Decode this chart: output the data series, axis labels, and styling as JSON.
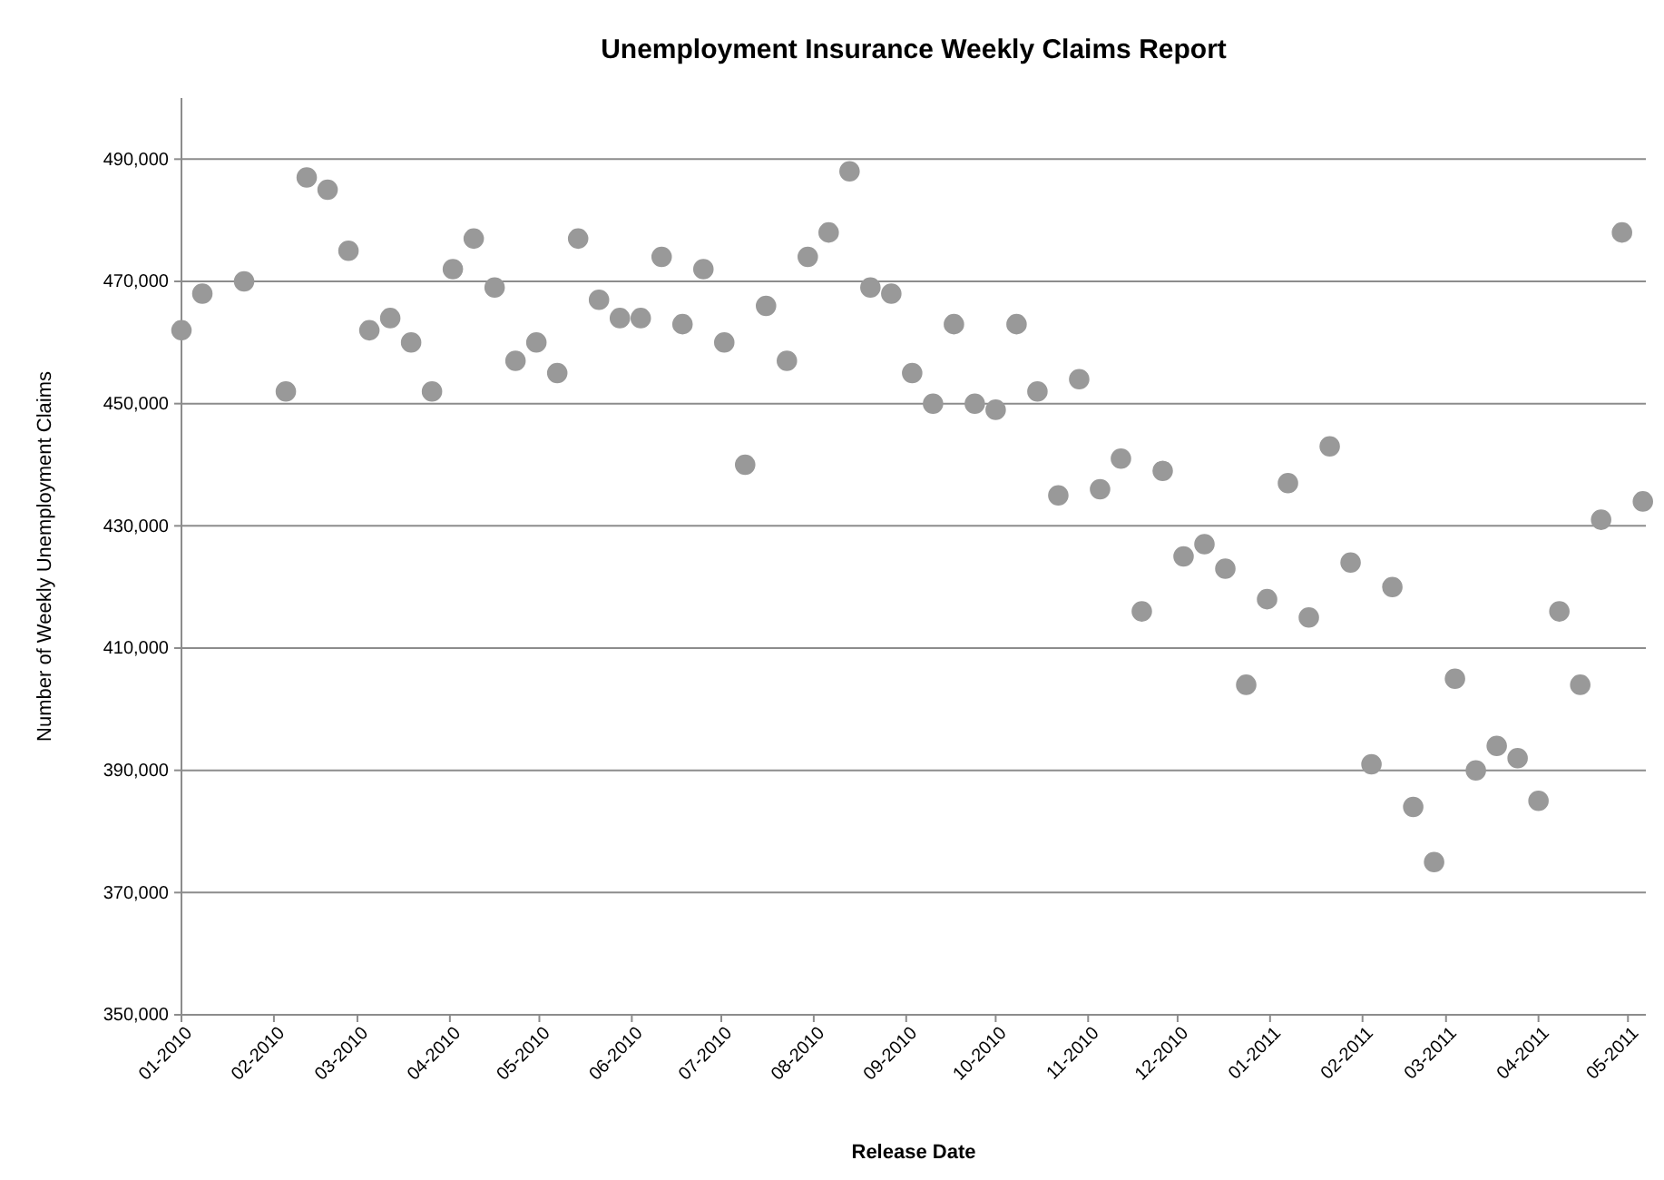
{
  "chart_data": {
    "type": "scatter",
    "title": "Unemployment Insurance Weekly Claims Report",
    "xlabel": "Release Date",
    "ylabel": "Number of Weekly Unemployment Claims",
    "x": [
      "2010-01-01",
      "2010-01-08",
      "2010-01-22",
      "2010-02-05",
      "2010-02-12",
      "2010-02-19",
      "2010-02-26",
      "2010-03-05",
      "2010-03-12",
      "2010-03-19",
      "2010-03-26",
      "2010-04-02",
      "2010-04-09",
      "2010-04-16",
      "2010-04-23",
      "2010-04-30",
      "2010-05-07",
      "2010-05-14",
      "2010-05-21",
      "2010-05-28",
      "2010-06-04",
      "2010-06-11",
      "2010-06-18",
      "2010-06-25",
      "2010-07-02",
      "2010-07-09",
      "2010-07-16",
      "2010-07-23",
      "2010-07-30",
      "2010-08-06",
      "2010-08-13",
      "2010-08-20",
      "2010-08-27",
      "2010-09-03",
      "2010-09-10",
      "2010-09-17",
      "2010-09-24",
      "2010-10-01",
      "2010-10-08",
      "2010-10-15",
      "2010-10-22",
      "2010-10-29",
      "2010-11-05",
      "2010-11-12",
      "2010-11-19",
      "2010-11-26",
      "2010-12-03",
      "2010-12-10",
      "2010-12-17",
      "2010-12-24",
      "2010-12-31",
      "2011-01-07",
      "2011-01-14",
      "2011-01-21",
      "2011-01-28",
      "2011-02-04",
      "2011-02-11",
      "2011-02-18",
      "2011-02-25",
      "2011-03-04",
      "2011-03-11",
      "2011-03-18",
      "2011-03-25",
      "2011-04-01",
      "2011-04-08",
      "2011-04-15",
      "2011-04-22",
      "2011-04-29",
      "2011-05-06"
    ],
    "series": [
      {
        "color": "#999999",
        "values": [
          462000,
          468000,
          470000,
          452000,
          487000,
          485000,
          475000,
          462000,
          464000,
          460000,
          452000,
          472000,
          477000,
          469000,
          457000,
          460000,
          455000,
          477000,
          467000,
          464000,
          464000,
          474000,
          463000,
          472000,
          460000,
          440000,
          466000,
          457000,
          474000,
          478000,
          488000,
          469000,
          468000,
          455000,
          450000,
          463000,
          450000,
          449000,
          463000,
          452000,
          435000,
          454000,
          436000,
          441000,
          416000,
          439000,
          425000,
          427000,
          423000,
          404000,
          418000,
          437000,
          415000,
          443000,
          424000,
          391000,
          420000,
          384000,
          375000,
          405000,
          390000,
          394000,
          392000,
          385000,
          416000,
          404000,
          431000,
          478000,
          434000
        ]
      }
    ],
    "marker": "circle",
    "grid": "y",
    "xlim": [
      "2010-01-01",
      "2011-05-07"
    ],
    "xticks": [
      {
        "value": "2010-01-01",
        "label": "01-2010"
      },
      {
        "value": "2010-02-01",
        "label": "02-2010"
      },
      {
        "value": "2010-03-01",
        "label": "03-2010"
      },
      {
        "value": "2010-04-01",
        "label": "04-2010"
      },
      {
        "value": "2010-05-01",
        "label": "05-2010"
      },
      {
        "value": "2010-06-01",
        "label": "06-2010"
      },
      {
        "value": "2010-07-01",
        "label": "07-2010"
      },
      {
        "value": "2010-08-01",
        "label": "08-2010"
      },
      {
        "value": "2010-09-01",
        "label": "09-2010"
      },
      {
        "value": "2010-10-01",
        "label": "10-2010"
      },
      {
        "value": "2010-11-01",
        "label": "11-2010"
      },
      {
        "value": "2010-12-01",
        "label": "12-2010"
      },
      {
        "value": "2011-01-01",
        "label": "01-2011"
      },
      {
        "value": "2011-02-01",
        "label": "02-2011"
      },
      {
        "value": "2011-03-01",
        "label": "03-2011"
      },
      {
        "value": "2011-04-01",
        "label": "04-2011"
      },
      {
        "value": "2011-05-01",
        "label": "05-2011"
      }
    ],
    "ylim": [
      350000,
      500000
    ],
    "yticks": [
      {
        "value": 350000,
        "label": "350,000"
      },
      {
        "value": 370000,
        "label": "370,000"
      },
      {
        "value": 390000,
        "label": "390,000"
      },
      {
        "value": 410000,
        "label": "410,000"
      },
      {
        "value": 430000,
        "label": "430,000"
      },
      {
        "value": 450000,
        "label": "450,000"
      },
      {
        "value": 470000,
        "label": "470,000"
      },
      {
        "value": 490000,
        "label": "490,000"
      }
    ]
  }
}
